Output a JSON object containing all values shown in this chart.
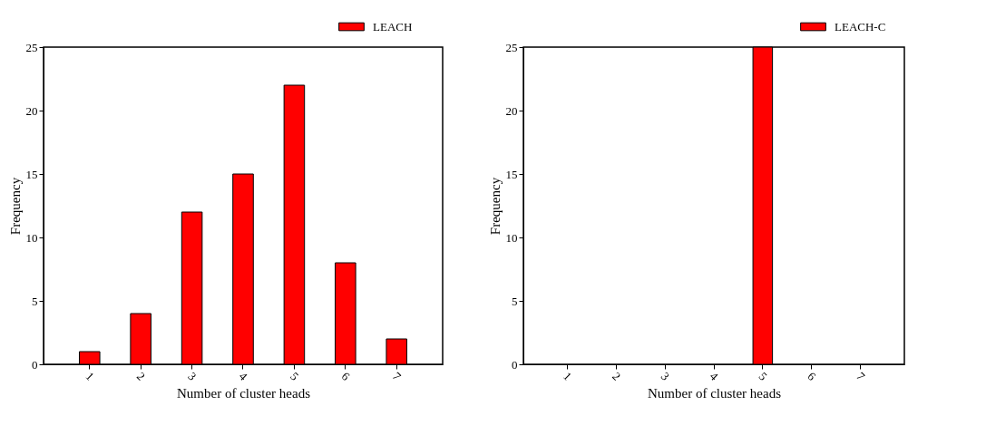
{
  "chart_data": [
    {
      "type": "bar",
      "xlabel": "Number of cluster heads",
      "ylabel": "Frequency",
      "categories": [
        "1",
        "2",
        "3",
        "4",
        "5",
        "6",
        "7"
      ],
      "series": [
        {
          "name": "LEACH",
          "color": "#ff0000",
          "values": [
            1,
            4,
            12,
            15,
            22,
            8,
            2
          ]
        }
      ],
      "ylim": [
        0,
        25
      ],
      "yticks": [
        0,
        5,
        10,
        15,
        20,
        25
      ],
      "legend": "top right",
      "grid": false
    },
    {
      "type": "bar",
      "xlabel": "Number of cluster heads",
      "ylabel": "Frequency",
      "categories": [
        "1",
        "2",
        "3",
        "4",
        "5",
        "6",
        "7"
      ],
      "series": [
        {
          "name": "LEACH-C",
          "color": "#ff0000",
          "values": [
            0,
            0,
            0,
            0,
            25,
            0,
            0
          ]
        }
      ],
      "ylim": [
        0,
        25
      ],
      "yticks": [
        0,
        5,
        10,
        15,
        20,
        25
      ],
      "legend": "top right",
      "grid": false
    }
  ]
}
